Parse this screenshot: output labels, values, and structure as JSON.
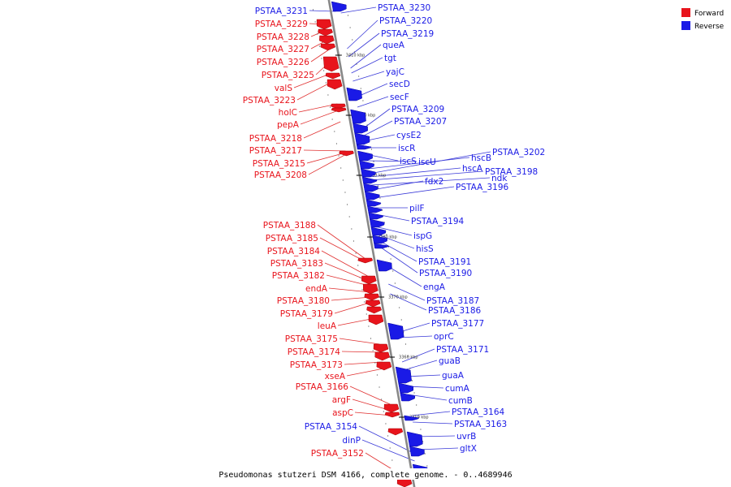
{
  "colors": {
    "forward": "#e8141c",
    "reverse": "#1a1ae6",
    "forward_line": "#e03030",
    "reverse_line": "#3a3ad8",
    "axis": "#888888"
  },
  "legend": {
    "forward": "Forward",
    "reverse": "Reverse"
  },
  "caption": "Pseudomonas stutzeri DSM 4166, complete genome. - 0..4689946",
  "ticks": [
    "3410 kbp",
    "3400 kbp",
    "3390 kbp",
    "3380 kbp",
    "3370 kbp",
    "3360 kbp",
    "3350 kbp"
  ],
  "forward_genes": [
    "PSTAA_3229",
    "PSTAA_3228",
    "PSTAA_3227",
    "PSTAA_3226",
    "PSTAA_3225",
    "valS",
    "PSTAA_3223",
    "holC",
    "pepA",
    "PSTAA_3218",
    "PSTAA_3217",
    "PSTAA_3215",
    "PSTAA_3208",
    "PSTAA_3188",
    "PSTAA_3185",
    "PSTAA_3184",
    "PSTAA_3183",
    "PSTAA_3182",
    "endA",
    "PSTAA_3180",
    "PSTAA_3179",
    "leuA",
    "PSTAA_3175",
    "PSTAA_3174",
    "PSTAA_3173",
    "xseA",
    "PSTAA_3166",
    "argF",
    "aspC",
    "PSTAA_3152"
  ],
  "reverse_genes_left": [
    "PSTAA_3231",
    "PSTAA_3154",
    "dinP"
  ],
  "reverse_genes_right": [
    "PSTAA_3230",
    "PSTAA_3220",
    "PSTAA_3219",
    "queA",
    "tgt",
    "yajC",
    "secD",
    "secF",
    "PSTAA_3209",
    "PSTAA_3207",
    "cysE2",
    "iscR",
    "iscS",
    "iscU",
    "hscB",
    "PSTAA_3202",
    "hscA",
    "PSTAA_3198",
    "ndk",
    "fdx2",
    "PSTAA_3196",
    "pilF",
    "PSTAA_3194",
    "ispG",
    "hisS",
    "PSTAA_3191",
    "PSTAA_3190",
    "engA",
    "PSTAA_3187",
    "PSTAA_3186",
    "PSTAA_3177",
    "oprC",
    "PSTAA_3171",
    "guaB",
    "guaA",
    "cumA",
    "cumB",
    "PSTAA_3164",
    "PSTAA_3163",
    "uvrB",
    "gltX"
  ]
}
